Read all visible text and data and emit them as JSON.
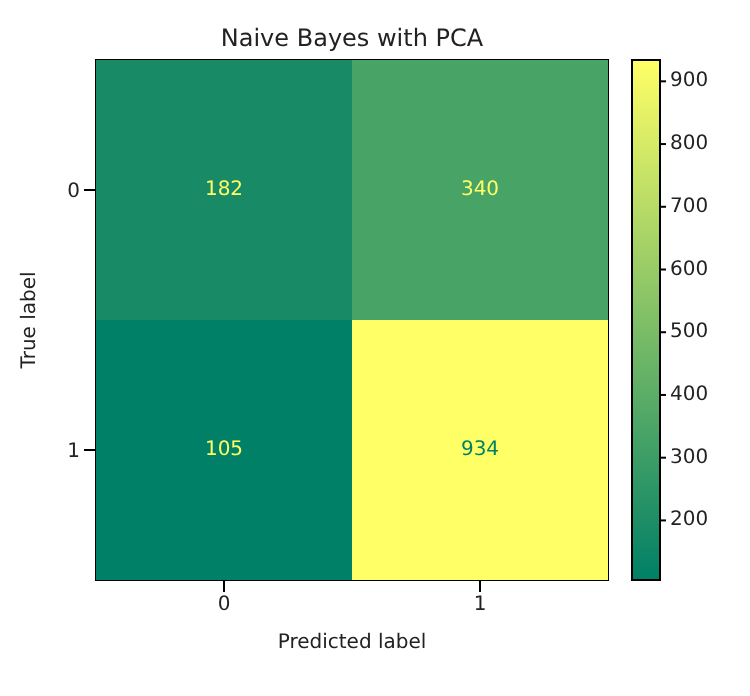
{
  "chart_data": {
    "type": "heatmap",
    "title": "Naive Bayes with PCA",
    "xlabel": "Predicted label",
    "ylabel": "True label",
    "categories": [
      "0",
      "1"
    ],
    "y_categories": [
      "0",
      "1"
    ],
    "cells": [
      [
        182,
        340
      ],
      [
        105,
        934
      ]
    ],
    "clim": [
      105,
      934
    ],
    "cticks": [
      200,
      300,
      400,
      500,
      600,
      700,
      800,
      900
    ],
    "data_labels": true
  }
}
